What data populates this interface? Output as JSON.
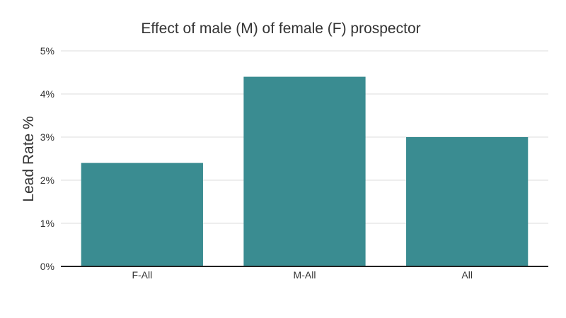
{
  "chart_data": {
    "type": "bar",
    "title": "Effect of male (M) of female (F) prospector",
    "xlabel": "",
    "ylabel": "Lead Rate %",
    "categories": [
      "F-All",
      "M-All",
      "All"
    ],
    "values": [
      2.4,
      4.4,
      3.0
    ],
    "ylim": [
      0,
      5
    ],
    "yticks": [
      {
        "value": 0,
        "label": "0%"
      },
      {
        "value": 1,
        "label": "1%"
      },
      {
        "value": 2,
        "label": "2%"
      },
      {
        "value": 3,
        "label": "3%"
      },
      {
        "value": 4,
        "label": "4%"
      },
      {
        "value": 5,
        "label": "5%"
      }
    ],
    "grid": true,
    "bar_color": "#3a8c91"
  }
}
